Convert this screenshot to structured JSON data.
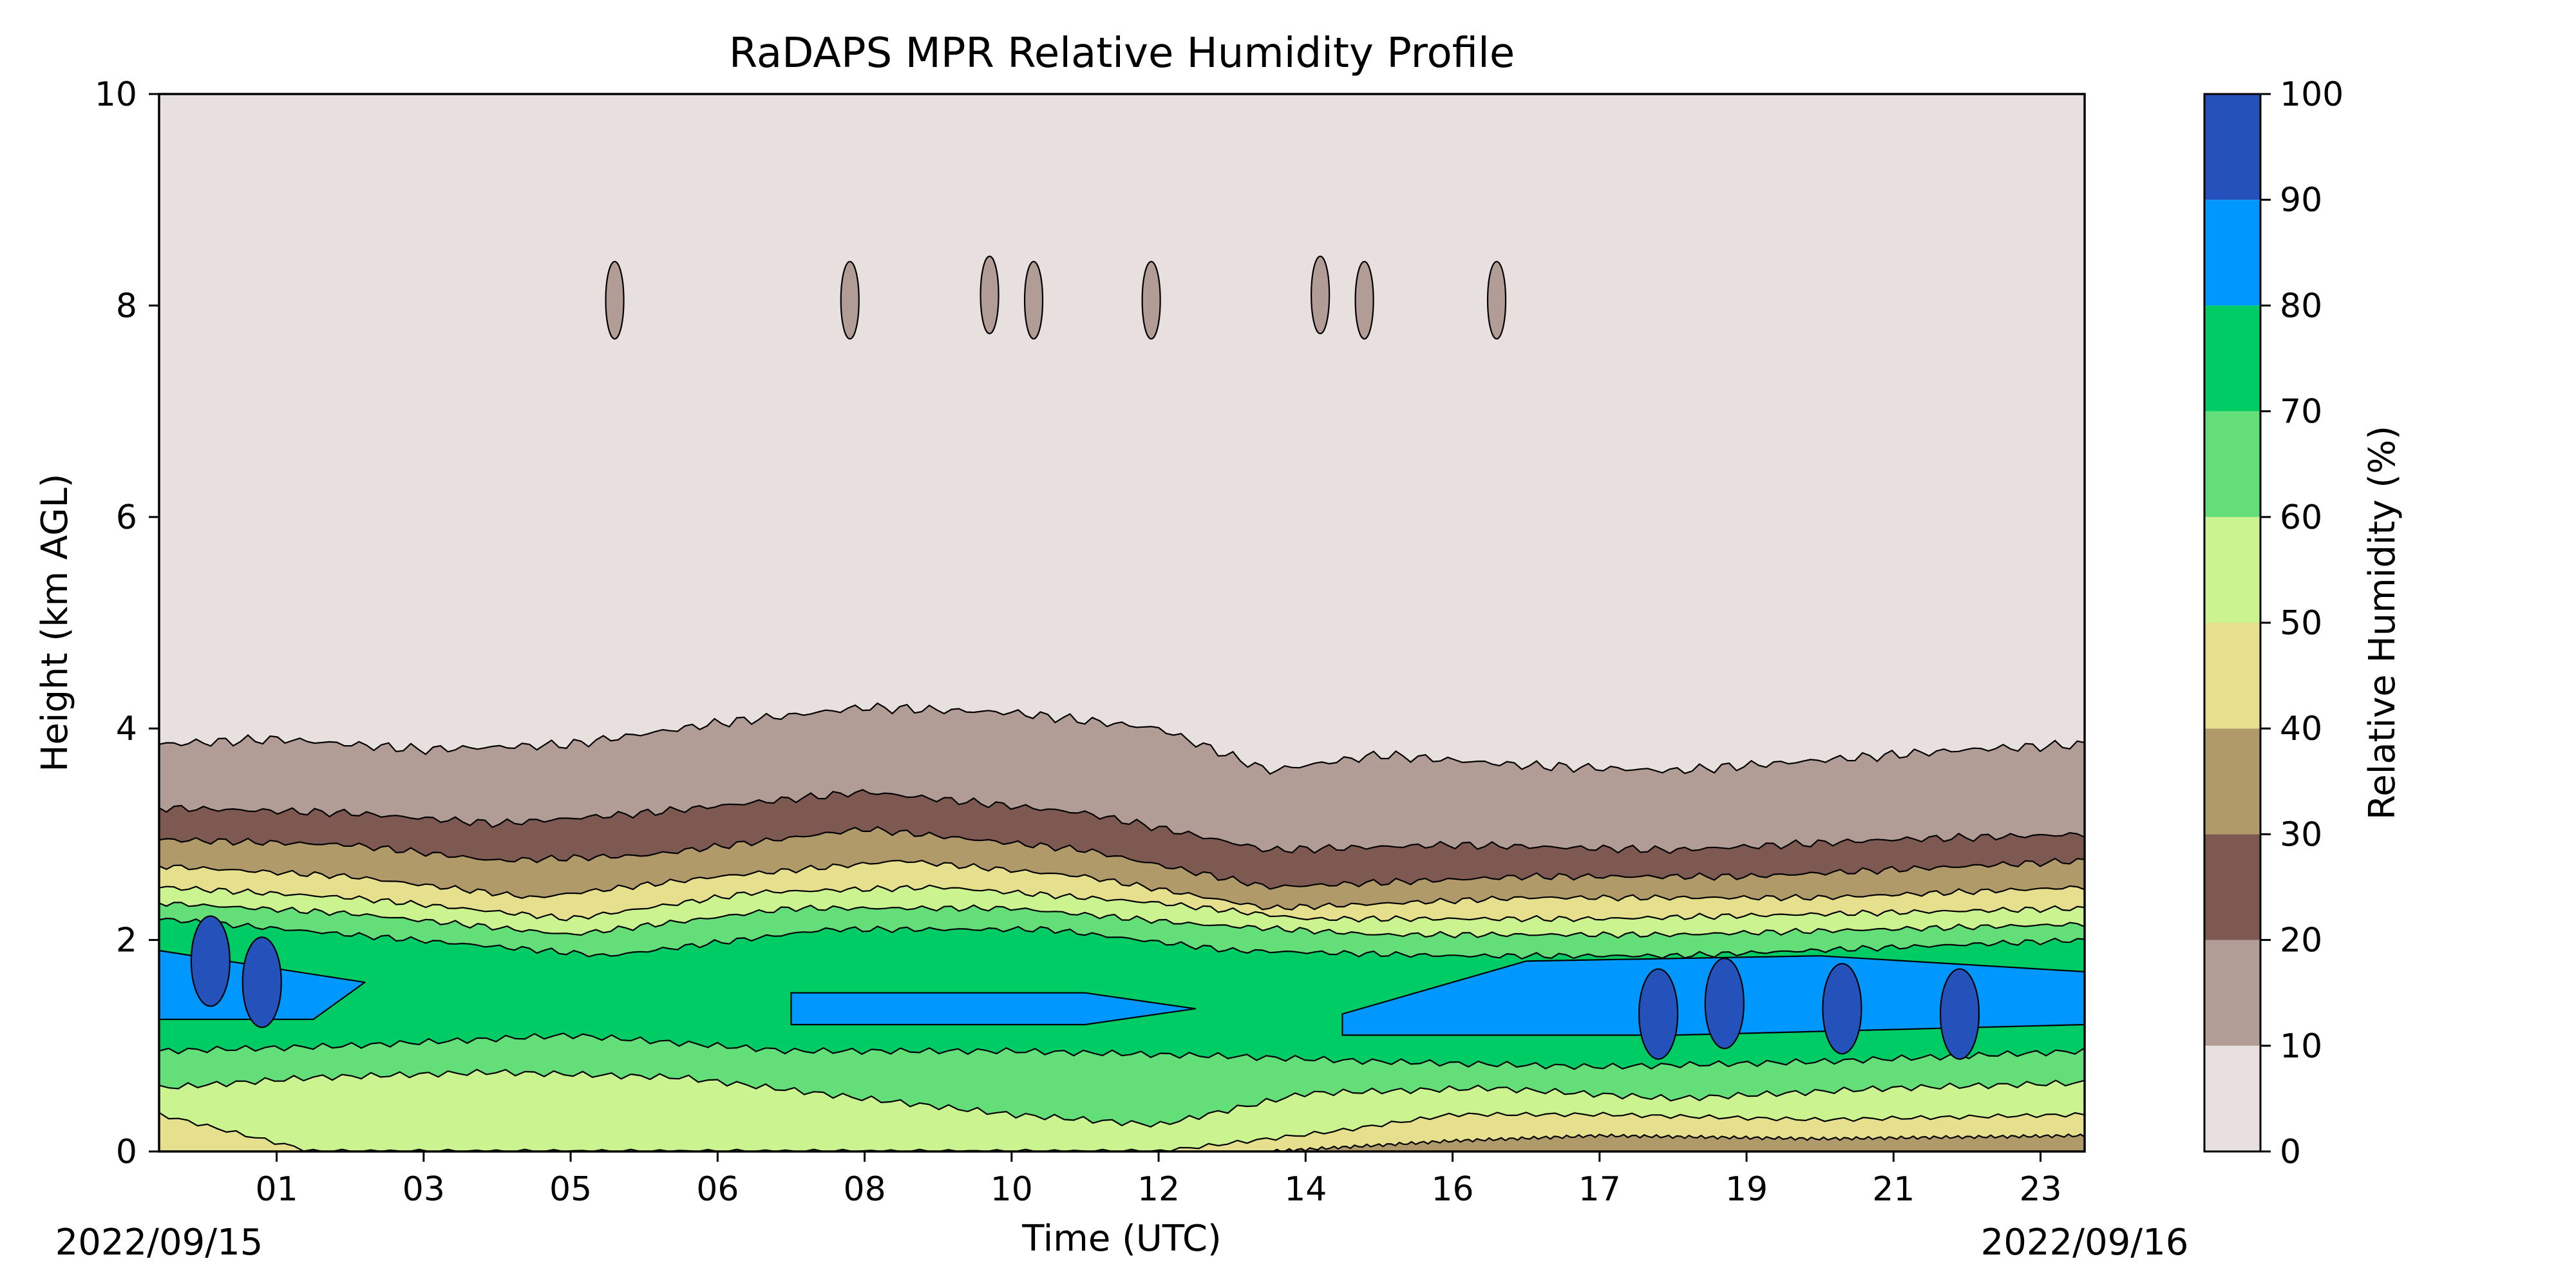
{
  "chart_data": {
    "type": "contour",
    "title": "RaDAPS MPR Relative Humidity Profile",
    "xlabel": "Time (UTC)",
    "ylabel": "Height (km AGL)",
    "colorbar_label": "Relative Humidity (%)",
    "x_tick_labels": [
      "01",
      "03",
      "05",
      "06",
      "08",
      "10",
      "12",
      "14",
      "16",
      "17",
      "19",
      "21",
      "23"
    ],
    "x_tick_hours": [
      1.0,
      3.0,
      5.0,
      7.0,
      9.0,
      11.0,
      13.0,
      15.0,
      17.0,
      19.0,
      21.0,
      23.0,
      25.0
    ],
    "x_range_hours": [
      -0.6,
      25.6
    ],
    "date_start": "2022/09/15",
    "date_end": "2022/09/16",
    "y_ticks": [
      0,
      2,
      4,
      6,
      8,
      10
    ],
    "ylim": [
      0,
      10
    ],
    "levels": [
      0,
      10,
      20,
      30,
      40,
      50,
      60,
      70,
      80,
      90,
      100
    ],
    "colors": [
      "#e8e0df",
      "#b29d96",
      "#7e5951",
      "#b09a6a",
      "#e6e08e",
      "#cbf490",
      "#63de79",
      "#00cc66",
      "#0098ff",
      "#2552ba"
    ],
    "contour_boundaries_km": {
      "rh_10": [
        [
          -0.6,
          3.85
        ],
        [
          1.0,
          3.9
        ],
        [
          3.0,
          3.8
        ],
        [
          5.0,
          3.85
        ],
        [
          7.0,
          4.05
        ],
        [
          9.0,
          4.2
        ],
        [
          11.0,
          4.15
        ],
        [
          13.0,
          4.0
        ],
        [
          14.5,
          3.6
        ],
        [
          16.0,
          3.75
        ],
        [
          18.0,
          3.65
        ],
        [
          20.0,
          3.6
        ],
        [
          22.0,
          3.7
        ],
        [
          24.0,
          3.8
        ],
        [
          25.6,
          3.85
        ]
      ],
      "rh_20": [
        [
          -0.6,
          3.25
        ],
        [
          2.0,
          3.2
        ],
        [
          4.0,
          3.1
        ],
        [
          6.0,
          3.2
        ],
        [
          9.0,
          3.4
        ],
        [
          12.0,
          3.2
        ],
        [
          14.5,
          2.85
        ],
        [
          17.0,
          2.9
        ],
        [
          20.0,
          2.85
        ],
        [
          23.0,
          2.95
        ],
        [
          25.6,
          3.0
        ]
      ],
      "rh_30": [
        [
          -0.6,
          2.95
        ],
        [
          2.0,
          2.9
        ],
        [
          4.0,
          2.75
        ],
        [
          6.0,
          2.8
        ],
        [
          9.0,
          3.05
        ],
        [
          12.0,
          2.85
        ],
        [
          14.5,
          2.5
        ],
        [
          18.0,
          2.6
        ],
        [
          21.0,
          2.6
        ],
        [
          25.6,
          2.75
        ]
      ],
      "rh_40": [
        [
          -0.6,
          2.7
        ],
        [
          2.0,
          2.6
        ],
        [
          4.5,
          2.4
        ],
        [
          7.0,
          2.6
        ],
        [
          9.5,
          2.75
        ],
        [
          12.0,
          2.6
        ],
        [
          14.5,
          2.3
        ],
        [
          18.0,
          2.4
        ],
        [
          22.0,
          2.4
        ],
        [
          25.6,
          2.5
        ]
      ],
      "rh_50": [
        [
          -0.6,
          2.5
        ],
        [
          2.0,
          2.4
        ],
        [
          5.0,
          2.2
        ],
        [
          7.5,
          2.45
        ],
        [
          10.0,
          2.5
        ],
        [
          13.0,
          2.35
        ],
        [
          15.0,
          2.2
        ],
        [
          19.0,
          2.2
        ],
        [
          25.6,
          2.3
        ]
      ],
      "rh_60": [
        [
          -0.6,
          2.35
        ],
        [
          2.0,
          2.25
        ],
        [
          5.0,
          2.05
        ],
        [
          8.0,
          2.3
        ],
        [
          11.0,
          2.3
        ],
        [
          13.5,
          2.15
        ],
        [
          16.0,
          2.05
        ],
        [
          20.0,
          2.05
        ],
        [
          25.6,
          2.15
        ]
      ],
      "rh_70": [
        [
          -0.6,
          2.2
        ],
        [
          2.0,
          2.05
        ],
        [
          5.5,
          1.85
        ],
        [
          8.5,
          2.1
        ],
        [
          11.5,
          2.1
        ],
        [
          14.0,
          1.9
        ],
        [
          17.0,
          1.85
        ],
        [
          20.0,
          1.85
        ],
        [
          25.6,
          2.0
        ]
      ],
      "rh_70_lower": [
        [
          -0.6,
          0.95
        ],
        [
          2.0,
          1.0
        ],
        [
          5.0,
          1.1
        ],
        [
          8.0,
          0.95
        ],
        [
          11.0,
          0.95
        ],
        [
          14.0,
          0.9
        ],
        [
          16.0,
          0.85
        ],
        [
          19.0,
          0.8
        ],
        [
          22.0,
          0.85
        ],
        [
          25.6,
          0.95
        ]
      ],
      "rh_60_lower": [
        [
          -0.6,
          0.6
        ],
        [
          1.5,
          0.7
        ],
        [
          4.0,
          0.75
        ],
        [
          6.5,
          0.7
        ],
        [
          9.0,
          0.5
        ],
        [
          11.0,
          0.35
        ],
        [
          13.0,
          0.25
        ],
        [
          15.0,
          0.55
        ],
        [
          17.5,
          0.6
        ],
        [
          20.0,
          0.5
        ],
        [
          23.0,
          0.6
        ],
        [
          25.6,
          0.65
        ]
      ],
      "rh_50_lower": [
        [
          -0.6,
          0.35
        ],
        [
          1.5,
          0.0
        ],
        [
          6.0,
          0.0
        ],
        [
          13.0,
          0.0
        ],
        [
          15.5,
          0.2
        ],
        [
          17.0,
          0.35
        ],
        [
          19.0,
          0.35
        ],
        [
          22.0,
          0.3
        ],
        [
          25.6,
          0.35
        ]
      ],
      "rh_40_lower": [
        [
          14.5,
          0.0
        ],
        [
          17.0,
          0.1
        ],
        [
          19.0,
          0.15
        ],
        [
          22.0,
          0.12
        ],
        [
          25.6,
          0.15
        ]
      ],
      "rh_80_band": [
        [
          [
            -0.6,
            1.25
          ],
          [
            1.5,
            1.25
          ],
          [
            2.2,
            1.6
          ],
          [
            -0.6,
            1.9
          ]
        ],
        [
          [
            8.0,
            1.2
          ],
          [
            12.0,
            1.2
          ],
          [
            13.5,
            1.35
          ],
          [
            12.0,
            1.5
          ],
          [
            8.0,
            1.5
          ]
        ],
        [
          [
            15.5,
            1.1
          ],
          [
            20.0,
            1.1
          ],
          [
            25.6,
            1.2
          ],
          [
            25.6,
            1.7
          ],
          [
            22.0,
            1.85
          ],
          [
            18.0,
            1.8
          ],
          [
            15.5,
            1.3
          ]
        ]
      ]
    },
    "upper_patches_10_20": [
      [
        5.6,
        8.05
      ],
      [
        8.8,
        8.05
      ],
      [
        10.7,
        8.1
      ],
      [
        11.3,
        8.05
      ],
      [
        12.9,
        8.05
      ],
      [
        15.2,
        8.1
      ],
      [
        15.8,
        8.05
      ],
      [
        17.6,
        8.05
      ]
    ],
    "wet_cores_90_100": [
      [
        0.1,
        1.8
      ],
      [
        0.8,
        1.6
      ],
      [
        19.8,
        1.3
      ],
      [
        20.7,
        1.4
      ],
      [
        22.3,
        1.35
      ],
      [
        23.9,
        1.3
      ]
    ]
  }
}
